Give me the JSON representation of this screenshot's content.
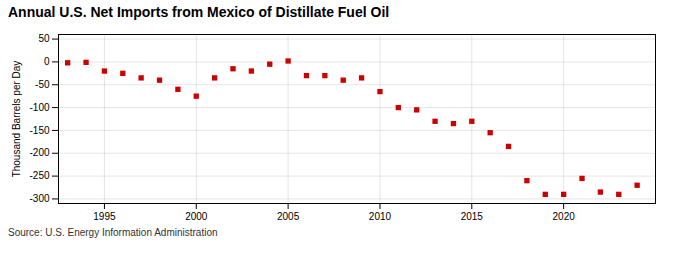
{
  "chart_data": {
    "type": "scatter",
    "title": "Annual U.S. Net Imports from Mexico of Distillate Fuel Oil",
    "ylabel": "Thousand Barrels per Day",
    "source": "Source: U.S. Energy Information Administration",
    "x": [
      1993,
      1994,
      1995,
      1996,
      1997,
      1998,
      1999,
      2000,
      2001,
      2002,
      2003,
      2004,
      2005,
      2006,
      2007,
      2008,
      2009,
      2010,
      2011,
      2012,
      2013,
      2014,
      2015,
      2016,
      2017,
      2018,
      2019,
      2020,
      2021,
      2022,
      2023,
      2024
    ],
    "values": [
      -2,
      -1,
      -20,
      -25,
      -35,
      -40,
      -60,
      -75,
      -35,
      -15,
      -20,
      -5,
      2,
      -30,
      -30,
      -40,
      -35,
      -65,
      -100,
      -105,
      -130,
      -135,
      -130,
      -155,
      -185,
      -260,
      -290,
      -290,
      -255,
      -285,
      -290,
      -270
    ],
    "color": "#cc0000",
    "marker": "square",
    "xlim": [
      1992.5,
      2025
    ],
    "xticks": [
      1995,
      2000,
      2005,
      2010,
      2015,
      2020
    ],
    "ylim": [
      -310,
      60
    ],
    "yticks": [
      50,
      0,
      -50,
      -100,
      -150,
      -200,
      -250,
      -300
    ],
    "grid": true
  }
}
